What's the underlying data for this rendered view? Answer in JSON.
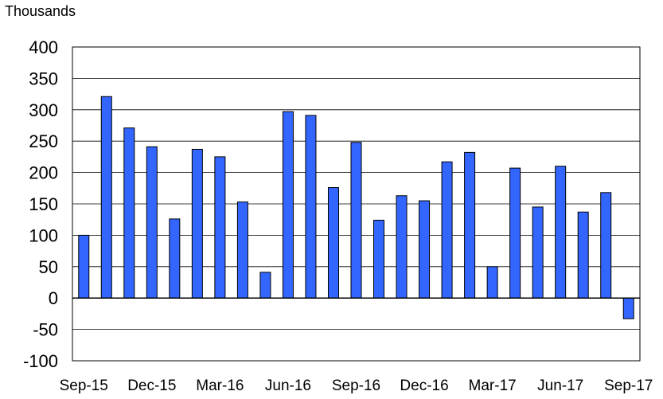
{
  "chart_data": {
    "type": "bar",
    "ylabel": "Thousands",
    "xlabel": "",
    "title": "",
    "ylim": [
      -100,
      400
    ],
    "yticks": [
      400,
      350,
      300,
      250,
      200,
      150,
      100,
      50,
      0,
      -50,
      -100
    ],
    "categories": [
      "Sep-15",
      "Oct-15",
      "Nov-15",
      "Dec-15",
      "Jan-16",
      "Feb-16",
      "Mar-16",
      "Apr-16",
      "May-16",
      "Jun-16",
      "Jul-16",
      "Aug-16",
      "Sep-16",
      "Oct-16",
      "Nov-16",
      "Dec-16",
      "Jan-17",
      "Feb-17",
      "Mar-17",
      "Apr-17",
      "May-17",
      "Jun-17",
      "Jul-17",
      "Aug-17",
      "Sep-17"
    ],
    "xtick_labels": [
      "Sep-15",
      "Dec-15",
      "Mar-16",
      "Jun-16",
      "Sep-16",
      "Dec-16",
      "Mar-17",
      "Jun-17",
      "Sep-17"
    ],
    "values": [
      100,
      321,
      271,
      241,
      126,
      237,
      225,
      153,
      41,
      297,
      291,
      176,
      248,
      124,
      163,
      155,
      217,
      232,
      50,
      207,
      145,
      210,
      137,
      168,
      -33
    ],
    "grid": true,
    "bar_color": "#3366ff",
    "legend": "none"
  }
}
